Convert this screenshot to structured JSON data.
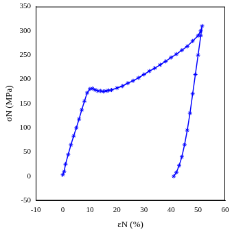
{
  "chart_data": {
    "type": "line",
    "x_label": "εN (%)",
    "y_label": "σN (MPa)",
    "x": [
      0,
      0.5,
      1,
      2,
      3,
      4,
      5,
      6,
      7,
      8,
      9,
      10,
      11,
      12,
      13,
      14,
      15,
      16,
      17,
      18,
      20,
      22,
      24,
      26,
      28,
      30,
      32,
      34,
      36,
      38,
      40,
      42,
      44,
      46,
      48,
      50,
      51,
      51.5,
      51,
      50,
      49,
      48,
      47,
      46,
      45,
      44,
      43,
      42,
      41
    ],
    "values": [
      3,
      10,
      25,
      45,
      65,
      83,
      100,
      118,
      137,
      155,
      172,
      180,
      181,
      178,
      176,
      176,
      175,
      176,
      177,
      178,
      182,
      186,
      192,
      197,
      203,
      210,
      217,
      223,
      230,
      237,
      245,
      252,
      260,
      268,
      279,
      290,
      300,
      310,
      290,
      250,
      210,
      170,
      130,
      95,
      65,
      40,
      22,
      8,
      0
    ],
    "color": "#0000ff",
    "marker": "star",
    "line_style": "solid",
    "xlim": [
      -10,
      60
    ],
    "xticks": [
      -10,
      0,
      10,
      20,
      30,
      40,
      50,
      60
    ],
    "ylim": [
      -50,
      350
    ],
    "yticks": [
      -50,
      0,
      50,
      100,
      150,
      200,
      250,
      300,
      350
    ],
    "grid": false
  }
}
